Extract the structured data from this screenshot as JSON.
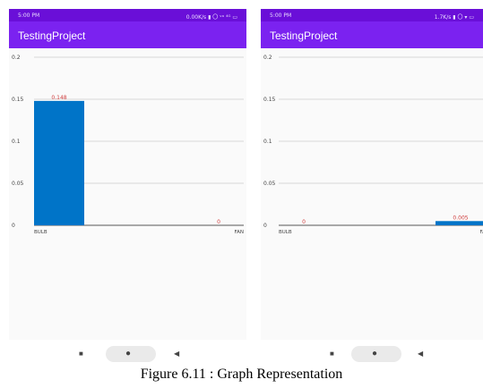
{
  "phones": [
    {
      "status_time": "5:00 PM",
      "status_right": "0.00K/s ▮ 〇 ᵛᵒ ⁴ᴳ ▭",
      "app_title": "TestingProject"
    },
    {
      "status_time": "5:00 PM",
      "status_right": "1.7K/s ▮ 〇 ▾ ▭",
      "app_title": "TestingProject"
    }
  ],
  "chart_data": [
    {
      "type": "bar",
      "title": "",
      "xlabel": "",
      "ylabel": "",
      "categories": [
        "BULB",
        "FAN"
      ],
      "values": [
        0.148,
        0
      ],
      "value_labels": [
        "0.148",
        "0"
      ],
      "ylim": [
        0,
        0.2
      ],
      "yticks": [
        0,
        0.05,
        0.1,
        0.15,
        0.2
      ],
      "ytick_labels": [
        "0",
        "0.05",
        "0.1",
        "0.15",
        "0.2"
      ],
      "grid": true,
      "bar_color": "#0074c8",
      "label_color": "#d04040"
    },
    {
      "type": "bar",
      "title": "",
      "xlabel": "",
      "ylabel": "",
      "categories": [
        "BULB",
        "FAN"
      ],
      "values": [
        0,
        0.005
      ],
      "value_labels": [
        "0",
        "0.005"
      ],
      "ylim": [
        0,
        0.2
      ],
      "yticks": [
        0,
        0.05,
        0.1,
        0.15,
        0.2
      ],
      "ytick_labels": [
        "0",
        "0.05",
        "0.1",
        "0.15",
        "0.2"
      ],
      "grid": true,
      "bar_color": "#0074c8",
      "label_color": "#d04040"
    }
  ],
  "nav": {
    "square_icon": "■",
    "home_icon": "●",
    "back_icon": "◀"
  },
  "caption": "Figure 6.11 : Graph Representation"
}
